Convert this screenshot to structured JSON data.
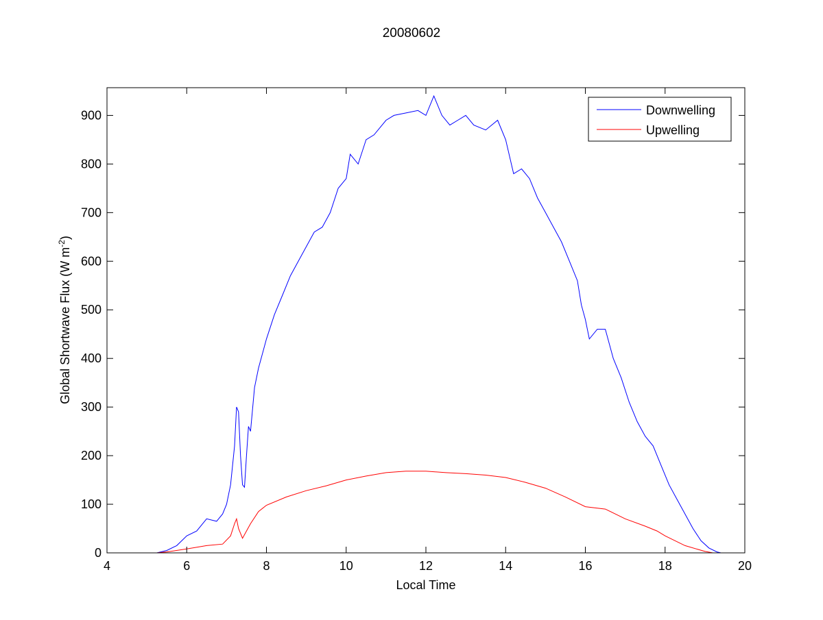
{
  "chart_data": {
    "type": "line",
    "title": "20080602",
    "xlabel": "Local Time",
    "ylabel": "Global Shortwave Flux (W m",
    "ylabel_sup": "-2",
    "ylabel_end": ")",
    "xlim": [
      4,
      20
    ],
    "ylim": [
      0,
      957
    ],
    "xticks": [
      4,
      6,
      8,
      10,
      12,
      14,
      16,
      18,
      20
    ],
    "yticks": [
      0,
      100,
      200,
      300,
      400,
      500,
      600,
      700,
      800,
      900
    ],
    "grid": false,
    "legend_position": "top-right",
    "series": [
      {
        "name": "Downwelling",
        "color": "#0000ff",
        "x": [
          5.25,
          5.5,
          5.75,
          6.0,
          6.25,
          6.5,
          6.75,
          6.9,
          7.0,
          7.1,
          7.2,
          7.25,
          7.3,
          7.35,
          7.4,
          7.45,
          7.5,
          7.55,
          7.6,
          7.7,
          7.8,
          8.0,
          8.2,
          8.4,
          8.6,
          8.8,
          9.0,
          9.2,
          9.4,
          9.6,
          9.8,
          10.0,
          10.1,
          10.3,
          10.5,
          10.7,
          11.0,
          11.2,
          11.5,
          11.8,
          12.0,
          12.2,
          12.4,
          12.6,
          12.8,
          13.0,
          13.2,
          13.5,
          13.8,
          14.0,
          14.2,
          14.4,
          14.6,
          14.8,
          15.0,
          15.2,
          15.4,
          15.6,
          15.8,
          15.9,
          16.0,
          16.1,
          16.3,
          16.5,
          16.7,
          16.9,
          17.1,
          17.3,
          17.5,
          17.7,
          17.9,
          18.1,
          18.3,
          18.5,
          18.7,
          18.9,
          19.1,
          19.3,
          19.4
        ],
        "y": [
          0,
          5,
          15,
          35,
          45,
          70,
          65,
          80,
          100,
          140,
          220,
          300,
          290,
          200,
          140,
          135,
          200,
          260,
          250,
          340,
          380,
          440,
          490,
          530,
          570,
          600,
          630,
          660,
          670,
          700,
          750,
          770,
          820,
          800,
          850,
          860,
          890,
          900,
          905,
          910,
          900,
          940,
          900,
          880,
          890,
          900,
          880,
          870,
          890,
          850,
          780,
          790,
          770,
          730,
          700,
          670,
          640,
          600,
          560,
          510,
          480,
          440,
          460,
          460,
          400,
          360,
          310,
          270,
          240,
          220,
          180,
          140,
          110,
          80,
          50,
          25,
          10,
          2,
          0
        ]
      },
      {
        "name": "Upwelling",
        "color": "#ff0000",
        "x": [
          5.25,
          5.5,
          6.0,
          6.5,
          6.9,
          7.1,
          7.2,
          7.25,
          7.3,
          7.4,
          7.5,
          7.6,
          7.8,
          8.0,
          8.5,
          9.0,
          9.5,
          10.0,
          10.5,
          11.0,
          11.5,
          12.0,
          12.5,
          13.0,
          13.5,
          14.0,
          14.5,
          15.0,
          15.5,
          16.0,
          16.5,
          17.0,
          17.5,
          17.8,
          18.0,
          18.5,
          19.0,
          19.2
        ],
        "y": [
          0,
          2,
          8,
          15,
          18,
          35,
          60,
          70,
          50,
          30,
          45,
          60,
          85,
          98,
          115,
          128,
          138,
          150,
          158,
          165,
          168,
          168,
          165,
          163,
          160,
          155,
          145,
          133,
          115,
          95,
          90,
          70,
          55,
          45,
          35,
          15,
          3,
          0
        ]
      }
    ]
  }
}
